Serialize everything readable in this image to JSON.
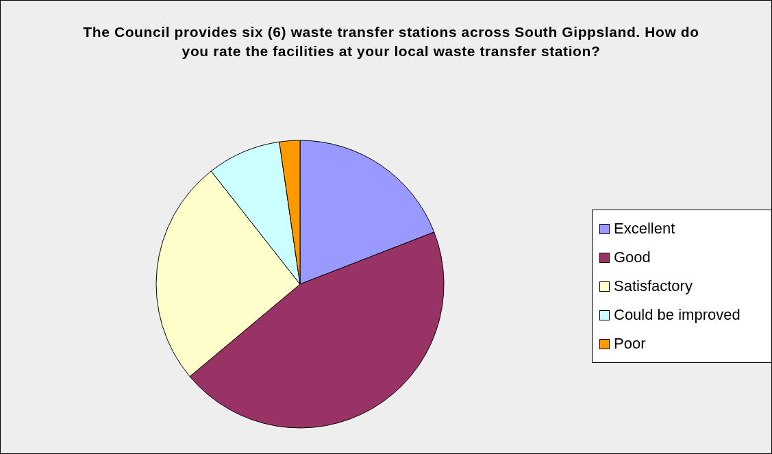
{
  "chart_data": {
    "type": "pie",
    "title": "The Council provides six (6) waste transfer stations across South Gippsland. How do you rate the facilities at your local waste transfer station?",
    "categories": [
      "Excellent",
      "Good",
      "Satisfactory",
      "Could be improved",
      "Poor"
    ],
    "values": [
      19.1,
      44.8,
      25.5,
      8.3,
      2.3
    ],
    "colors": [
      "#9999ff",
      "#993366",
      "#ffffcc",
      "#ccffff",
      "#ff9900"
    ],
    "legend": "right"
  }
}
